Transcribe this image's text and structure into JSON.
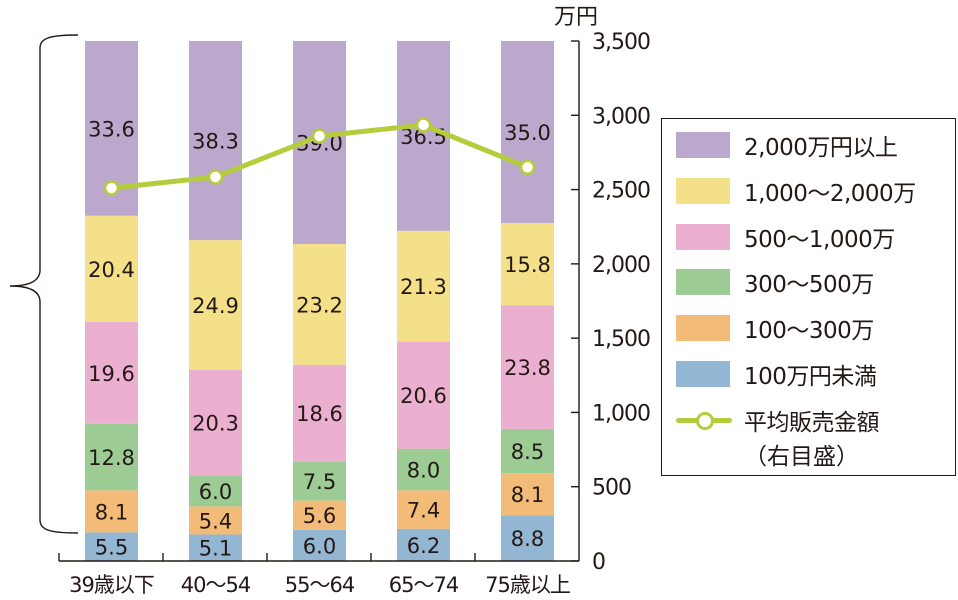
{
  "chart_data": {
    "type": "bar",
    "stacked": true,
    "title": "",
    "xlabel": "",
    "ylabel_right": "万円",
    "categories": [
      "39歳以下",
      "40～54",
      "55～64",
      "65～74",
      "75歳以上"
    ],
    "series": [
      {
        "name": "100万円未満",
        "color": "#93b6d2",
        "values": [
          5.5,
          5.1,
          6.0,
          6.2,
          8.8
        ]
      },
      {
        "name": "100～300万",
        "color": "#f2bb78",
        "values": [
          8.1,
          5.4,
          5.6,
          7.4,
          8.1
        ]
      },
      {
        "name": "300～500万",
        "color": "#9ccb94",
        "values": [
          12.8,
          6.0,
          7.5,
          8.0,
          8.5
        ]
      },
      {
        "name": "500～1,000万",
        "color": "#ebb0cf",
        "values": [
          19.6,
          20.3,
          18.6,
          20.6,
          23.8
        ]
      },
      {
        "name": "1,000～2,000万",
        "color": "#f4e089",
        "values": [
          20.4,
          24.9,
          23.2,
          21.3,
          15.8
        ]
      },
      {
        "name": "2,000万円以上",
        "color": "#bba8cc",
        "values": [
          33.6,
          38.3,
          39.0,
          36.5,
          35.0
        ]
      }
    ],
    "line_series": {
      "name": "平均販売金額（右目盛）",
      "color": "#b5cc3c",
      "axis": "right",
      "values": [
        2510,
        2585,
        2860,
        2935,
        2650
      ]
    },
    "right_axis": {
      "unit": "万円",
      "ylim": [
        0,
        3500
      ],
      "ticks": [
        0,
        500,
        1000,
        1500,
        2000,
        2500,
        3000,
        3500
      ],
      "tick_labels": [
        "0",
        "500",
        "1,000",
        "1,500",
        "2,000",
        "2,500",
        "3,000",
        "3,500"
      ]
    },
    "left_axis_note": "brace spanning the top segments (100万円以上) of the first bar",
    "legend_position": "right",
    "grid": false
  },
  "legend": {
    "items": [
      {
        "label": "2,000万円以上",
        "color": "#bba8cc"
      },
      {
        "label": "1,000～2,000万",
        "color": "#f4e089"
      },
      {
        "label": "500～1,000万",
        "color": "#ebb0cf"
      },
      {
        "label": "300～500万",
        "color": "#9ccb94"
      },
      {
        "label": "100～300万",
        "color": "#f2bb78"
      },
      {
        "label": "100万円未満",
        "color": "#93b6d2"
      }
    ],
    "line_label": "平均販売金額",
    "line_sublabel": "（右目盛）"
  },
  "axis": {
    "unit": "万円"
  }
}
